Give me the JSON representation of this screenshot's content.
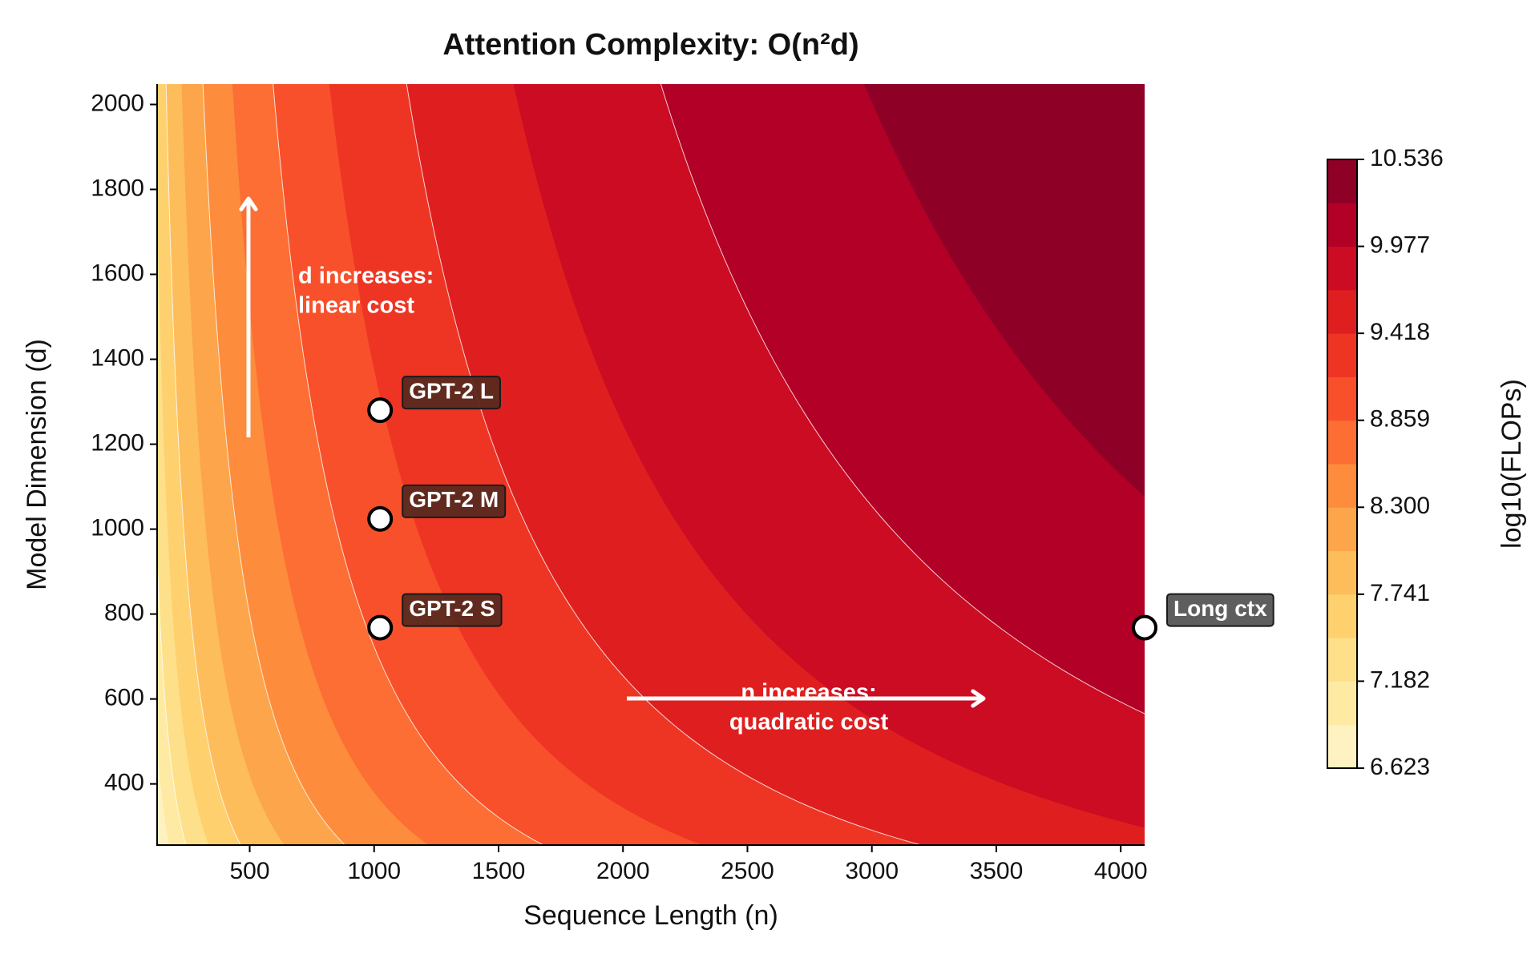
{
  "chart_data": {
    "type": "contour",
    "title": "Attention Complexity: O(n²d)",
    "x_label": "Sequence Length (n)",
    "y_label": "Model Dimension (d)",
    "colorbar_label": "log10(FLOPs)",
    "xlim": [
      128,
      4096
    ],
    "ylim": [
      256,
      2048
    ],
    "xticks": [
      500,
      1000,
      1500,
      2000,
      2500,
      3000,
      3500,
      4000
    ],
    "yticks": [
      400,
      600,
      800,
      1000,
      1200,
      1400,
      1600,
      1800,
      2000
    ],
    "levels": [
      6.623,
      6.9025,
      7.182,
      7.4615,
      7.741,
      8.0205,
      8.3,
      8.5795,
      8.859,
      9.1385,
      9.418,
      9.6975,
      9.977,
      10.2565,
      10.536
    ],
    "colors": [
      "#fff2c2",
      "#feeaa3",
      "#fee08a",
      "#fed06e",
      "#febd5b",
      "#fda54a",
      "#fd8c3c",
      "#fc6e33",
      "#f8502b",
      "#ee3524",
      "#df1f1f",
      "#cb0c22",
      "#b20026",
      "#8f0027"
    ],
    "cbar_ticks": [
      6.623,
      7.182,
      7.741,
      {
        "value": 8.3,
        "label": "8.300"
      },
      8.859,
      9.418,
      9.977,
      10.536
    ],
    "points": [
      {
        "label": "GPT-2 S",
        "x": 1024,
        "y": 768,
        "box": "#5a2a1f"
      },
      {
        "label": "GPT-2 M",
        "x": 1024,
        "y": 1024,
        "box": "#5a2a1f"
      },
      {
        "label": "GPT-2 L",
        "x": 1024,
        "y": 1280,
        "box": "#5a2a1f"
      },
      {
        "label": "Long ctx",
        "x": 4096,
        "y": 768,
        "box": "#555555"
      }
    ],
    "annotations": [
      {
        "lines": [
          "d increases:",
          "linear cost"
        ]
      },
      {
        "lines": [
          "n increases:",
          "quadratic cost"
        ]
      }
    ]
  }
}
